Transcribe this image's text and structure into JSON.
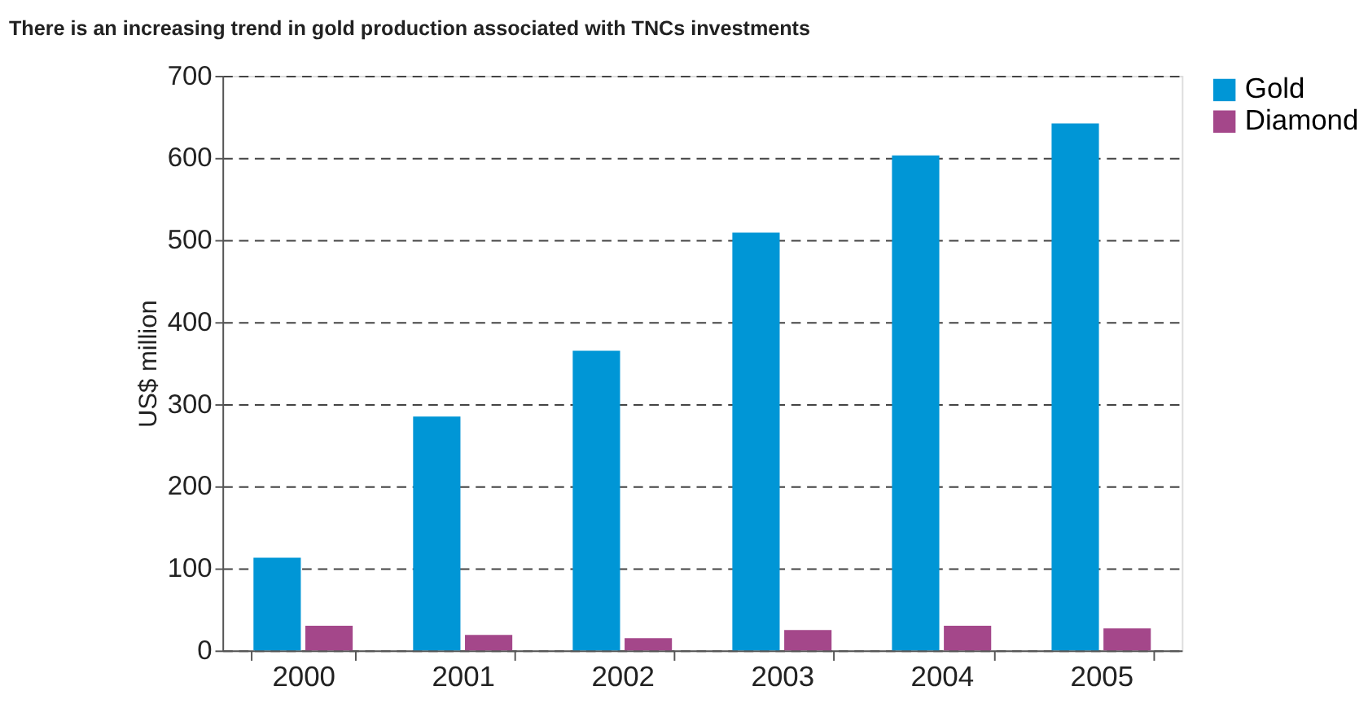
{
  "chart_data": {
    "type": "bar",
    "title": "There is an increasing trend in gold production associated with TNCs investments",
    "ylabel": "US$ million",
    "categories": [
      "2000",
      "2001",
      "2002",
      "2003",
      "2004",
      "2005"
    ],
    "series": [
      {
        "name": "Gold",
        "color": "#0096d6",
        "values": [
          113,
          285,
          365,
          509,
          603,
          642
        ]
      },
      {
        "name": "Diamond",
        "color": "#a4478a",
        "values": [
          30,
          19,
          15,
          25,
          30,
          27
        ]
      }
    ],
    "ylim": [
      0,
      700
    ],
    "yticks": [
      0,
      100,
      200,
      300,
      400,
      500,
      600,
      700
    ],
    "grid": "y",
    "legend": "right"
  }
}
